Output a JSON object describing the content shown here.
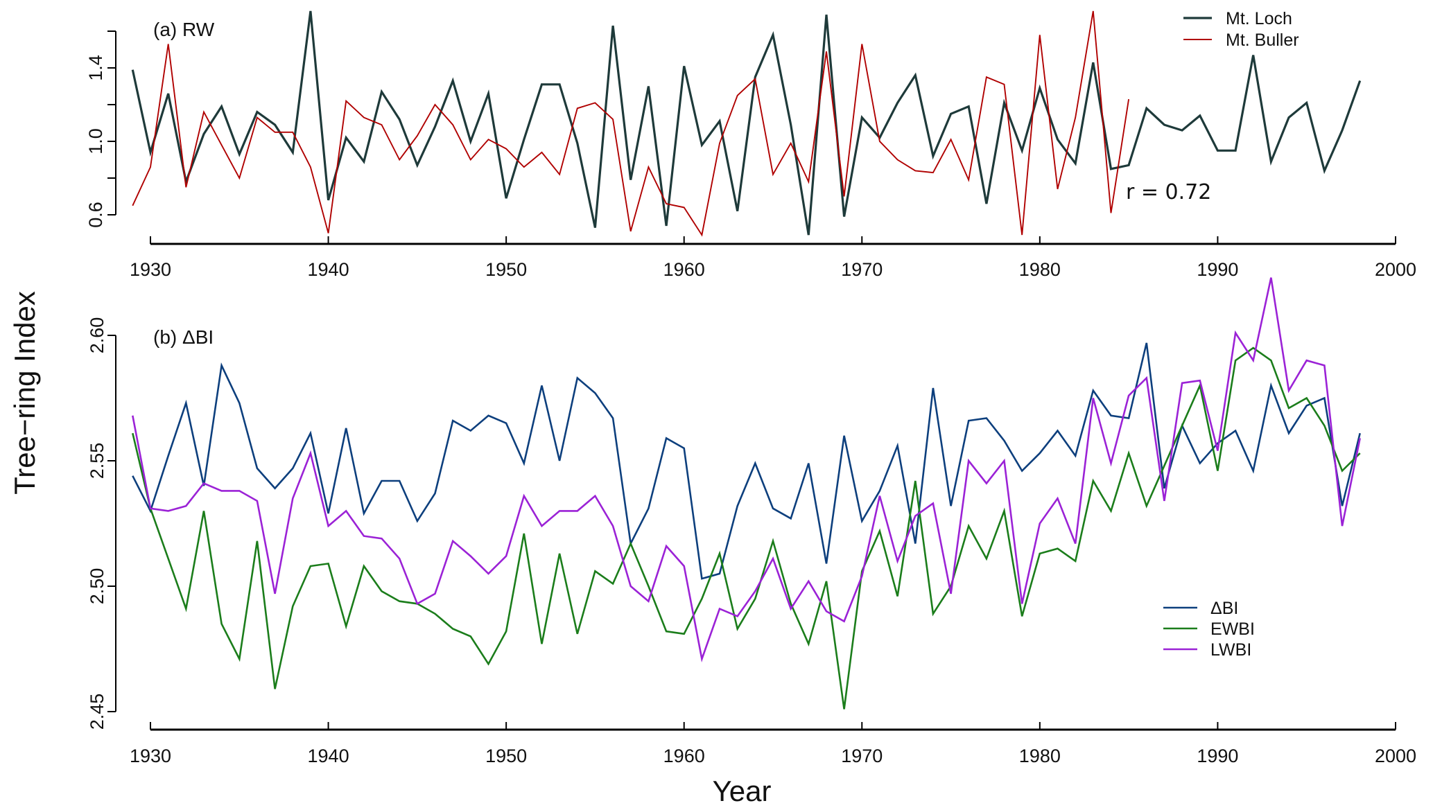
{
  "figure": {
    "ylabel": "Tree−ring Index",
    "xlabel": "Year"
  },
  "chart_data": [
    {
      "type": "line",
      "title": "(a) RW",
      "xlim": [
        1929,
        2000
      ],
      "ylim": [
        0.45,
        1.72
      ],
      "xticks": [
        1930,
        1940,
        1950,
        1960,
        1970,
        1980,
        1990,
        2000
      ],
      "xtick_labels": [
        "1930",
        "1940",
        "1950",
        "1960",
        "1970",
        "1980",
        "1990",
        "2000"
      ],
      "yticks": [
        0.6,
        0.8,
        1.0,
        1.2,
        1.4,
        1.6
      ],
      "ytick_labels": [
        {
          "value": 0.6,
          "label": "0.6"
        },
        {
          "value": 1.0,
          "label": "1.0"
        },
        {
          "value": 1.4,
          "label": "1.4"
        }
      ],
      "legend_position": "top-right",
      "annotation": "r = 0.72",
      "series": [
        {
          "name": "Mt. Loch",
          "color": "#1e3a3a",
          "start_year": 1929,
          "values": [
            1.39,
            0.94,
            1.26,
            0.78,
            1.04,
            1.19,
            0.93,
            1.16,
            1.09,
            0.94,
            1.71,
            0.68,
            1.02,
            0.89,
            1.27,
            1.12,
            0.87,
            1.08,
            1.33,
            1.0,
            1.26,
            0.69,
            1.01,
            1.31,
            1.31,
            0.99,
            0.53,
            1.63,
            0.79,
            1.3,
            0.54,
            1.41,
            0.98,
            1.11,
            0.62,
            1.35,
            1.58,
            1.09,
            0.49,
            1.69,
            0.59,
            1.13,
            1.02,
            1.21,
            1.36,
            0.92,
            1.15,
            1.19,
            0.66,
            1.21,
            0.95,
            1.29,
            1.01,
            0.88,
            1.43,
            0.85,
            0.87,
            1.18,
            1.09,
            1.06,
            1.14,
            0.95,
            0.95,
            1.47,
            0.89,
            1.13,
            1.21,
            0.84,
            1.06,
            1.33
          ]
        },
        {
          "name": "Mt. Buller",
          "color": "#b00000",
          "start_year": 1929,
          "values": [
            0.65,
            0.86,
            1.53,
            0.75,
            1.16,
            0.98,
            0.8,
            1.13,
            1.05,
            1.05,
            0.86,
            0.5,
            1.22,
            1.13,
            1.09,
            0.9,
            1.03,
            1.2,
            1.09,
            0.9,
            1.01,
            0.96,
            0.86,
            0.94,
            0.82,
            1.18,
            1.21,
            1.12,
            0.51,
            0.86,
            0.66,
            0.64,
            0.49,
            0.99,
            1.25,
            1.34,
            0.82,
            0.99,
            0.78,
            1.49,
            0.7,
            1.53,
            1.0,
            0.9,
            0.84,
            0.83,
            1.01,
            0.79,
            1.35,
            1.31,
            0.49,
            1.58,
            0.74,
            1.13,
            1.71,
            0.61,
            1.23
          ]
        }
      ]
    },
    {
      "type": "line",
      "title": "(b) ΔBI",
      "xlim": [
        1929,
        2000
      ],
      "ylim": [
        2.45,
        2.625
      ],
      "xticks": [
        1930,
        1940,
        1950,
        1960,
        1970,
        1980,
        1990,
        2000
      ],
      "xtick_labels": [
        "1930",
        "1940",
        "1950",
        "1960",
        "1970",
        "1980",
        "1990",
        "2000"
      ],
      "yticks": [
        2.45,
        2.5,
        2.55,
        2.6
      ],
      "ytick_labels": [
        {
          "value": 2.45,
          "label": "2.45"
        },
        {
          "value": 2.5,
          "label": "2.50"
        },
        {
          "value": 2.55,
          "label": "2.55"
        },
        {
          "value": 2.6,
          "label": "2.60"
        }
      ],
      "legend_position": "bottom-right",
      "series": [
        {
          "name": "ΔBI",
          "color": "#0d3f7d",
          "start_year": 1929,
          "values": [
            2.544,
            2.53,
            2.552,
            2.573,
            2.54,
            2.588,
            2.573,
            2.547,
            2.539,
            2.547,
            2.561,
            2.529,
            2.563,
            2.529,
            2.542,
            2.542,
            2.526,
            2.537,
            2.566,
            2.562,
            2.568,
            2.565,
            2.549,
            2.58,
            2.55,
            2.583,
            2.577,
            2.567,
            2.517,
            2.531,
            2.559,
            2.555,
            2.503,
            2.505,
            2.532,
            2.549,
            2.531,
            2.527,
            2.549,
            2.509,
            2.56,
            2.526,
            2.538,
            2.556,
            2.517,
            2.579,
            2.532,
            2.566,
            2.567,
            2.558,
            2.546,
            2.553,
            2.562,
            2.552,
            2.578,
            2.568,
            2.567,
            2.597,
            2.539,
            2.564,
            2.549,
            2.557,
            2.562,
            2.546,
            2.58,
            2.561,
            2.572,
            2.575,
            2.532,
            2.561
          ]
        },
        {
          "name": "EWBI",
          "color": "#1b7d1b",
          "start_year": 1929,
          "values": [
            2.561,
            2.531,
            2.511,
            2.491,
            2.53,
            2.485,
            2.471,
            2.518,
            2.459,
            2.492,
            2.508,
            2.509,
            2.484,
            2.508,
            2.498,
            2.494,
            2.493,
            2.489,
            2.483,
            2.48,
            2.469,
            2.482,
            2.521,
            2.477,
            2.513,
            2.481,
            2.506,
            2.501,
            2.517,
            2.5,
            2.482,
            2.481,
            2.495,
            2.513,
            2.483,
            2.495,
            2.518,
            2.493,
            2.477,
            2.502,
            2.451,
            2.506,
            2.522,
            2.496,
            2.542,
            2.489,
            2.5,
            2.524,
            2.511,
            2.53,
            2.488,
            2.513,
            2.515,
            2.51,
            2.542,
            2.53,
            2.553,
            2.532,
            2.548,
            2.564,
            2.58,
            2.546,
            2.59,
            2.595,
            2.59,
            2.571,
            2.575,
            2.564,
            2.546,
            2.553
          ]
        },
        {
          "name": "LWBI",
          "color": "#9b22d6",
          "start_year": 1929,
          "values": [
            2.568,
            2.531,
            2.53,
            2.532,
            2.541,
            2.538,
            2.538,
            2.534,
            2.497,
            2.535,
            2.553,
            2.524,
            2.53,
            2.52,
            2.519,
            2.511,
            2.493,
            2.497,
            2.518,
            2.512,
            2.505,
            2.512,
            2.536,
            2.524,
            2.53,
            2.53,
            2.536,
            2.524,
            2.5,
            2.494,
            2.516,
            2.508,
            2.471,
            2.491,
            2.488,
            2.498,
            2.511,
            2.491,
            2.502,
            2.49,
            2.486,
            2.504,
            2.536,
            2.51,
            2.528,
            2.533,
            2.497,
            2.55,
            2.541,
            2.55,
            2.493,
            2.525,
            2.535,
            2.517,
            2.575,
            2.549,
            2.576,
            2.583,
            2.534,
            2.581,
            2.582,
            2.554,
            2.601,
            2.59,
            2.623,
            2.578,
            2.59,
            2.588,
            2.524,
            2.559
          ]
        }
      ]
    }
  ]
}
